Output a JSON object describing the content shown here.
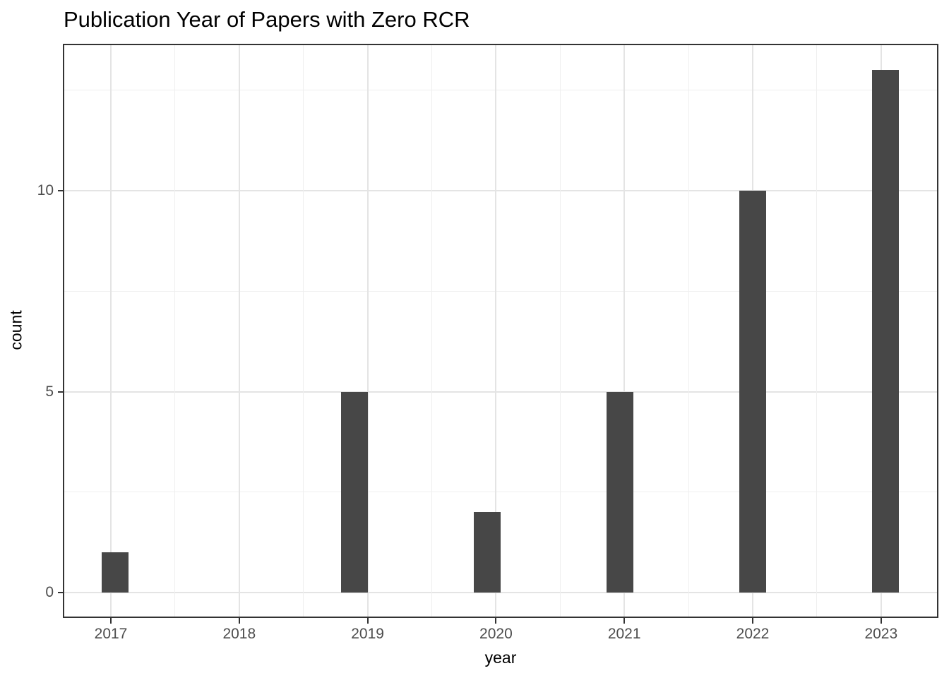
{
  "chart_data": {
    "type": "bar",
    "subtype": "histogram",
    "title": "Publication Year of Papers with Zero RCR",
    "xlabel": "year",
    "ylabel": "count",
    "categories": [
      "2017",
      "2018",
      "2019",
      "2020",
      "2021",
      "2022",
      "2023"
    ],
    "values": [
      1,
      0,
      5,
      2,
      5,
      10,
      13
    ],
    "yticks": [
      0,
      5,
      10
    ],
    "y_minor_gridlines": [
      2.5,
      7.5,
      12.5
    ],
    "ylim": [
      -0.65,
      13.66
    ],
    "grid": "major-and-minor, light gray on white",
    "legend": "none",
    "bar_color": "#474747",
    "gridline_color": "#e4e4e4",
    "axis_text_color": "#4d4d4d",
    "panel_border_color": "#333333"
  }
}
